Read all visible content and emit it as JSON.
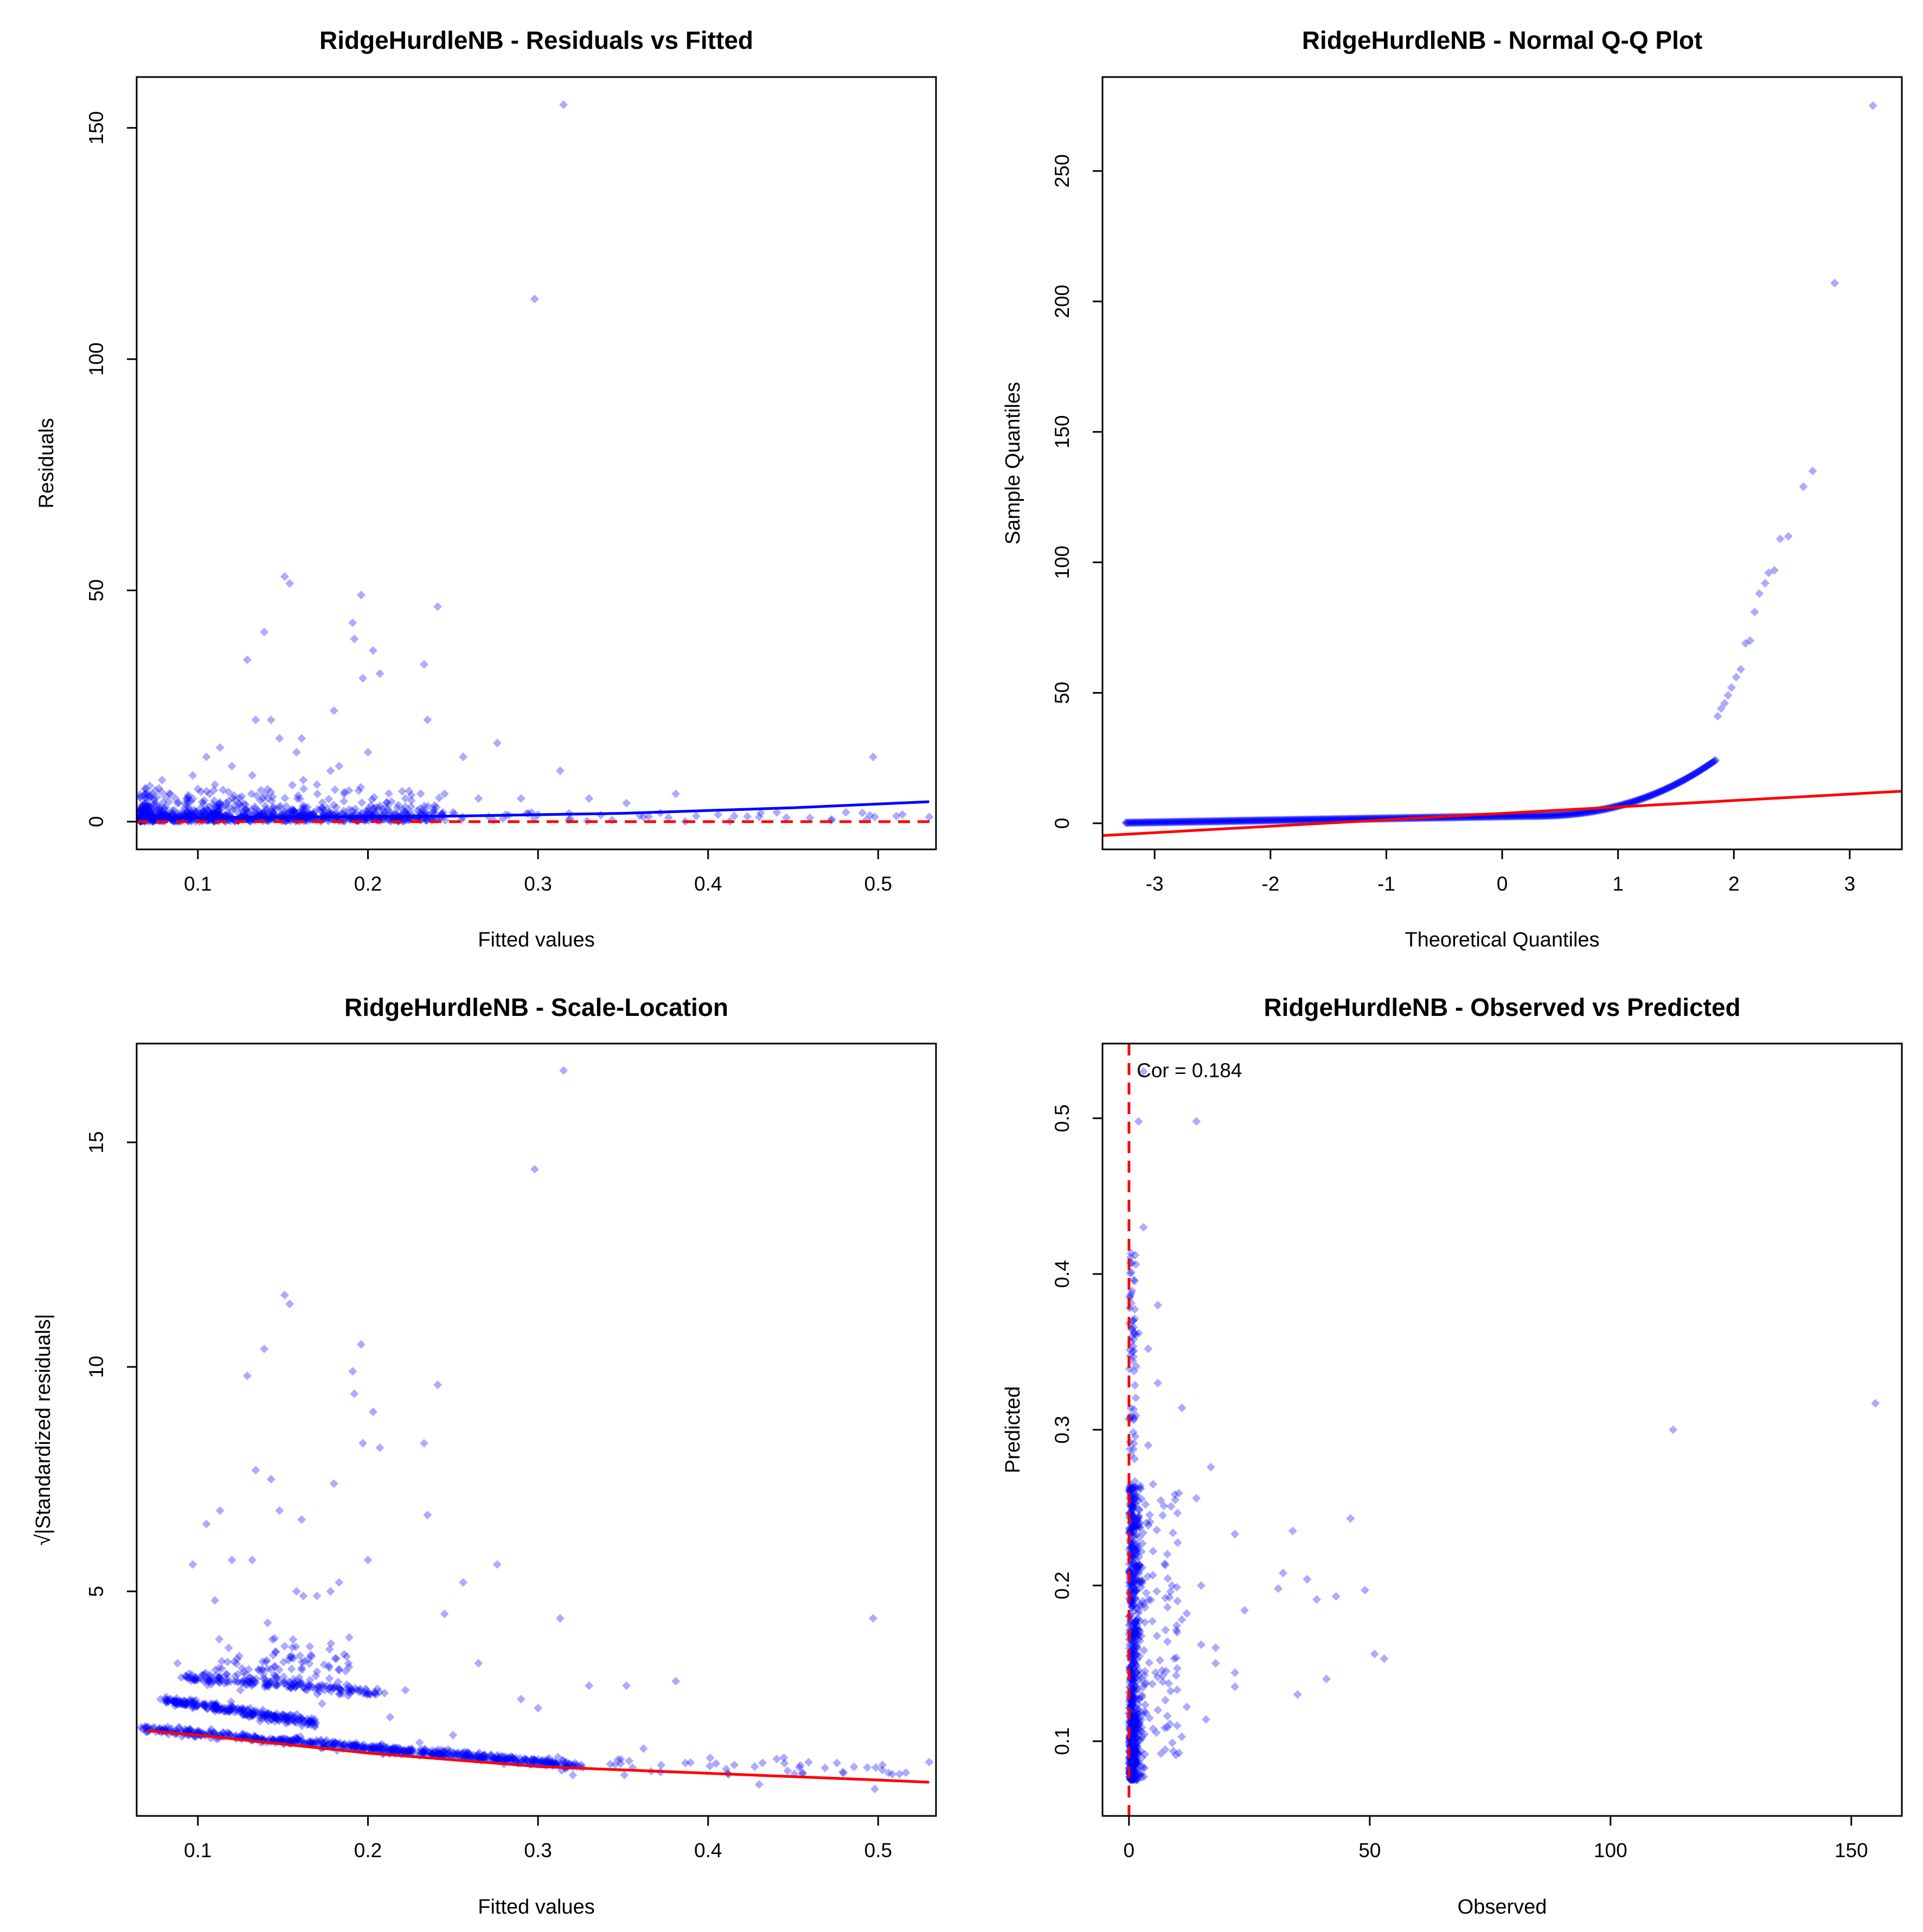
{
  "colors": {
    "points": "#0000ff",
    "trend_blue": "#0000ff",
    "trend_red": "#ff0000",
    "reference": "#ff0000",
    "frame": "#000000"
  },
  "chart_data": [
    {
      "id": "residuals_vs_fitted",
      "type": "scatter",
      "title": "RidgeHurdleNB - Residuals vs Fitted",
      "xlabel": "Fitted values",
      "ylabel": "Residuals",
      "xlim": [
        0.064,
        0.534
      ],
      "ylim": [
        -6,
        161
      ],
      "xticks": [
        0.1,
        0.2,
        0.3,
        0.4,
        0.5
      ],
      "xtick_labels": [
        "0.1",
        "0.2",
        "0.3",
        "0.4",
        "0.5"
      ],
      "yticks": [
        0,
        50,
        100,
        150
      ],
      "ytick_labels": [
        "0",
        "50",
        "100",
        "150"
      ],
      "reference_line": {
        "type": "horizontal",
        "y": 0,
        "style": "dashed",
        "color": "red"
      },
      "trend_line": {
        "color": "blue",
        "x": [
          0.07,
          0.15,
          0.25,
          0.35,
          0.45,
          0.53
        ],
        "y": [
          0.8,
          1.0,
          1.2,
          1.8,
          3.0,
          4.3
        ]
      },
      "series": [
        {
          "name": "observations",
          "color": "blue",
          "x": [
            0.315,
            0.298,
            0.151,
            0.154,
            0.196,
            0.241,
            0.191,
            0.192,
            0.203,
            0.139,
            0.129,
            0.233,
            0.207,
            0.197,
            0.235,
            0.134,
            0.143,
            0.18,
            0.148,
            0.161,
            0.113,
            0.2,
            0.105,
            0.276,
            0.158,
            0.183,
            0.178,
            0.256,
            0.313,
            0.497,
            0.12,
            0.097,
            0.132,
            0.162,
            0.17,
            0.11,
            0.141,
            0.245,
            0.381,
            0.33,
            0.186,
            0.222,
            0.265,
            0.29,
            0.352,
            0.43,
            0.498,
            0.53,
            0.362,
            0.078,
            0.088,
            0.125,
            0.173,
            0.213,
            0.25,
            0.3
          ],
          "y": [
            155,
            113,
            53,
            51.5,
            49,
            46.5,
            43,
            39.5,
            37,
            41,
            35,
            34,
            32,
            31,
            22,
            22,
            22,
            24,
            18,
            18,
            16,
            15,
            14,
            17,
            15,
            12,
            11,
            14,
            11,
            14,
            12,
            10,
            10,
            9,
            8,
            8,
            7,
            6,
            6,
            5,
            6,
            5,
            5,
            5,
            4,
            1,
            1,
            1,
            1,
            3,
            4,
            3,
            3,
            2,
            2,
            1.5
          ]
        }
      ]
    },
    {
      "id": "normal_qq",
      "type": "scatter",
      "title": "RidgeHurdleNB - Normal Q-Q Plot",
      "xlabel": "Theoretical Quantiles",
      "ylabel": "Sample Quantiles",
      "xlim": [
        -3.45,
        3.45
      ],
      "ylim": [
        -10,
        286
      ],
      "xticks": [
        -3,
        -2,
        -1,
        0,
        1,
        2,
        3
      ],
      "xtick_labels": [
        "-3",
        "-2",
        "-1",
        "0",
        "1",
        "2",
        "3"
      ],
      "yticks": [
        0,
        50,
        100,
        150,
        200,
        250
      ],
      "ytick_labels": [
        "0",
        "50",
        "100",
        "150",
        "200",
        "250"
      ],
      "reference_line": {
        "type": "qqline",
        "color": "red",
        "x": [
          -3.45,
          3.45
        ],
        "y": [
          -4.7,
          12.3
        ]
      },
      "series": [
        {
          "name": "sample quantiles",
          "color": "blue",
          "x": [
            3.2,
            2.87,
            2.68,
            2.6,
            2.47,
            2.4,
            2.35,
            2.3,
            2.27,
            2.22,
            2.18,
            2.14,
            2.1,
            2.06,
            2.02,
            1.98,
            1.95,
            1.92,
            1.89,
            1.86
          ],
          "y": [
            275,
            207,
            135,
            129,
            110,
            109,
            97,
            96,
            92,
            88,
            81,
            70,
            69,
            59,
            56,
            52,
            49,
            46,
            44,
            41
          ]
        }
      ]
    },
    {
      "id": "scale_location",
      "type": "scatter",
      "title": "RidgeHurdleNB - Scale-Location",
      "xlabel": "Fitted values",
      "ylabel": "√|Standardized residuals|",
      "xlim": [
        0.064,
        0.534
      ],
      "ylim": [
        0.0,
        17.2
      ],
      "xticks": [
        0.1,
        0.2,
        0.3,
        0.4,
        0.5
      ],
      "xtick_labels": [
        "0.1",
        "0.2",
        "0.3",
        "0.4",
        "0.5"
      ],
      "yticks": [
        5,
        10,
        15
      ],
      "ytick_labels": [
        "5",
        "10",
        "15"
      ],
      "trend_line": {
        "color": "red",
        "x": [
          0.07,
          0.1,
          0.15,
          0.2,
          0.3,
          0.4,
          0.5,
          0.53
        ],
        "y": [
          1.9,
          1.8,
          1.6,
          1.4,
          1.1,
          0.95,
          0.8,
          0.75
        ]
      },
      "series": [
        {
          "name": "observations",
          "color": "blue",
          "x": [
            0.315,
            0.298,
            0.151,
            0.154,
            0.196,
            0.241,
            0.191,
            0.192,
            0.203,
            0.139,
            0.129,
            0.233,
            0.207,
            0.197,
            0.235,
            0.134,
            0.143,
            0.18,
            0.148,
            0.161,
            0.113,
            0.2,
            0.105,
            0.276,
            0.158,
            0.183,
            0.178,
            0.256,
            0.313,
            0.497,
            0.12,
            0.097,
            0.132,
            0.162,
            0.17,
            0.11,
            0.141,
            0.245,
            0.381,
            0.33,
            0.186,
            0.222,
            0.265,
            0.29,
            0.352,
            0.43,
            0.498,
            0.53,
            0.362,
            0.078,
            0.088,
            0.125,
            0.173,
            0.213,
            0.25,
            0.3
          ],
          "y": [
            16.6,
            14.4,
            11.6,
            11.4,
            10.5,
            9.6,
            9.9,
            9.4,
            9.0,
            10.4,
            9.8,
            8.3,
            8.2,
            8.3,
            6.7,
            7.7,
            7.5,
            7.4,
            6.8,
            6.6,
            6.8,
            5.7,
            6.5,
            5.6,
            5.0,
            5.2,
            5.0,
            5.2,
            4.4,
            4.4,
            5.7,
            5.6,
            5.7,
            4.9,
            4.9,
            4.8,
            4.3,
            4.5,
            3.0,
            2.9,
            3.6,
            2.8,
            3.4,
            2.6,
            2.9,
            0.7,
            0.6,
            1.2,
            1.5,
            2.6,
            3.4,
            2.8,
            2.5,
            2.2,
            1.8,
            2.4
          ]
        }
      ]
    },
    {
      "id": "observed_vs_predicted",
      "type": "scatter",
      "title": "RidgeHurdleNB - Observed vs Predicted",
      "xlabel": "Observed",
      "ylabel": "Predicted",
      "xlim": [
        -5.5,
        160.5
      ],
      "ylim": [
        0.052,
        0.548
      ],
      "xticks": [
        0,
        50,
        100,
        150
      ],
      "xtick_labels": [
        "0",
        "50",
        "100",
        "150"
      ],
      "yticks": [
        0.1,
        0.2,
        0.3,
        0.4,
        0.5
      ],
      "ytick_labels": [
        "0.1",
        "0.2",
        "0.3",
        "0.4",
        "0.5"
      ],
      "reference_line": {
        "type": "vertical",
        "x": 0,
        "style": "dashed",
        "color": "red"
      },
      "annotation": "Cor = 0.184",
      "series": [
        {
          "name": "observations",
          "color": "blue",
          "x": [
            155,
            113,
            53,
            51,
            49,
            46,
            43,
            41,
            39,
            37,
            35,
            34,
            32,
            31,
            24,
            22,
            22,
            22,
            18,
            18,
            17,
            16,
            15,
            15,
            14,
            14,
            12,
            12,
            11,
            11,
            10,
            10,
            10,
            9,
            8,
            8,
            7,
            7,
            6,
            6,
            6,
            5,
            5,
            5,
            4,
            4,
            3,
            3,
            2,
            2,
            1,
            1,
            1
          ],
          "y": [
            0.317,
            0.3,
            0.153,
            0.156,
            0.197,
            0.243,
            0.193,
            0.14,
            0.191,
            0.204,
            0.13,
            0.235,
            0.208,
            0.198,
            0.184,
            0.233,
            0.135,
            0.144,
            0.16,
            0.15,
            0.276,
            0.114,
            0.162,
            0.2,
            0.498,
            0.256,
            0.122,
            0.182,
            0.314,
            0.178,
            0.11,
            0.133,
            0.17,
            0.099,
            0.164,
            0.186,
            0.142,
            0.245,
            0.38,
            0.33,
            0.12,
            0.265,
            0.222,
            0.108,
            0.29,
            0.352,
            0.53,
            0.43,
            0.362,
            0.498,
            0.11,
            0.09,
            0.2
          ]
        }
      ]
    }
  ]
}
